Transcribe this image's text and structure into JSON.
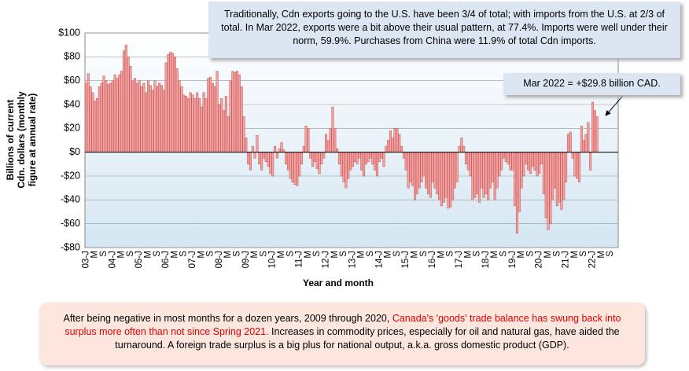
{
  "chart_data": {
    "type": "bar",
    "annotation": "Traditionally, Cdn exports going to the U.S. have been 3/4 of total; with imports from the U.S. at 2/3 of total. In Mar 2022, exports were a bit above their usual pattern, at 77.4%. Imports were well under their norm, 59.9%. Purchases from China were 11.9% of total Cdn imports.",
    "callout": "Mar 2022 = +$29.8 billion CAD.",
    "ylabel": [
      "Billions of current",
      "Cdn. dollars (monthly",
      "figure at annual rate)"
    ],
    "xlabel": "Year and month",
    "note": [
      "After being negative in most months for a dozen years, 2009 through 2020, ",
      "Canada's 'goods' trade balance has swung back into surplus more often than not since Spring 2021.",
      " Increases in commodity prices, especially for oil and natural gas, have aided the turnaround. A foreign trade surplus is a big plus for national output, a.k.a. gross domestic product (GDP)."
    ],
    "color": "#f4a3a3",
    "edgecolor": "#c0504d",
    "ylim": [
      -80,
      100
    ],
    "yticks": [
      {
        "value": -80,
        "label": "-$80"
      },
      {
        "value": -60,
        "label": "-$60"
      },
      {
        "value": -40,
        "label": "-$40"
      },
      {
        "value": -20,
        "label": "-$20"
      },
      {
        "value": 0,
        "label": "$0"
      },
      {
        "value": 20,
        "label": "$20"
      },
      {
        "value": 40,
        "label": "$40"
      },
      {
        "value": 60,
        "label": "$60"
      },
      {
        "value": 80,
        "label": "$80"
      },
      {
        "value": 100,
        "label": "$100"
      }
    ],
    "grid": true,
    "categories": [
      "03-J",
      null,
      null,
      null,
      "M",
      null,
      null,
      null,
      "S",
      null,
      null,
      null,
      "04-J",
      null,
      null,
      null,
      "M",
      null,
      null,
      null,
      "S",
      null,
      null,
      null,
      "05-J",
      null,
      null,
      null,
      "M",
      null,
      null,
      null,
      "S",
      null,
      null,
      null,
      "06-J",
      null,
      null,
      null,
      "M",
      null,
      null,
      null,
      "S",
      null,
      null,
      null,
      "07-J",
      null,
      null,
      null,
      "M",
      null,
      null,
      null,
      "S",
      null,
      null,
      null,
      "08-J",
      null,
      null,
      null,
      "M",
      null,
      null,
      null,
      "S",
      null,
      null,
      null,
      "09-J",
      null,
      null,
      null,
      "M",
      null,
      null,
      null,
      "S",
      null,
      null,
      null,
      "10-J",
      null,
      null,
      null,
      "M",
      null,
      null,
      null,
      "S",
      null,
      null,
      null,
      "11-J",
      null,
      null,
      null,
      "M",
      null,
      null,
      null,
      "S",
      null,
      null,
      null,
      "12-J",
      null,
      null,
      null,
      "M",
      null,
      null,
      null,
      "S",
      null,
      null,
      null,
      "13-J",
      null,
      null,
      null,
      "M",
      null,
      null,
      null,
      "S",
      null,
      null,
      null,
      "14-J",
      null,
      null,
      null,
      "M",
      null,
      null,
      null,
      "S",
      null,
      null,
      null,
      "15-J",
      null,
      null,
      null,
      "M",
      null,
      null,
      null,
      "S",
      null,
      null,
      null,
      "16-J",
      null,
      null,
      null,
      "M",
      null,
      null,
      null,
      "S",
      null,
      null,
      null,
      "17-J",
      null,
      null,
      null,
      "M",
      null,
      null,
      null,
      "S",
      null,
      null,
      null,
      "18-J",
      null,
      null,
      null,
      "M",
      null,
      null,
      null,
      "S",
      null,
      null,
      null,
      "19-J",
      null,
      null,
      null,
      "M",
      null,
      null,
      null,
      "S",
      null,
      null,
      null,
      "20-J",
      null,
      null,
      null,
      "M",
      null,
      null,
      null,
      "S",
      null,
      null,
      null,
      "21-J",
      null,
      null,
      null,
      "M",
      null,
      null,
      null,
      "S",
      null,
      null,
      null,
      "22-J",
      null,
      null,
      null,
      "M",
      null,
      null,
      null,
      "S",
      null,
      null,
      null
    ],
    "values": [
      58,
      66,
      55,
      50,
      43,
      45,
      55,
      58,
      64,
      60,
      57,
      58,
      60,
      65,
      62,
      65,
      68,
      85,
      90,
      80,
      72,
      60,
      62,
      58,
      60,
      55,
      58,
      50,
      60,
      56,
      52,
      60,
      55,
      58,
      56,
      52,
      75,
      82,
      84,
      83,
      80,
      70,
      60,
      55,
      48,
      47,
      45,
      50,
      48,
      45,
      50,
      45,
      38,
      50,
      45,
      62,
      63,
      58,
      55,
      68,
      40,
      45,
      35,
      47,
      30,
      60,
      68,
      67,
      68,
      65,
      55,
      30,
      12,
      -10,
      -15,
      5,
      -5,
      14,
      -10,
      -15,
      -5,
      -8,
      -12,
      -18,
      -20,
      5,
      -5,
      3,
      8,
      2,
      -10,
      -15,
      -22,
      -25,
      -27,
      -28,
      -20,
      -10,
      5,
      22,
      20,
      -5,
      -12,
      -8,
      -14,
      -18,
      -10,
      -5,
      15,
      10,
      20,
      38,
      20,
      3,
      -10,
      -20,
      -25,
      -30,
      -22,
      -15,
      -12,
      -8,
      -10,
      -5,
      -15,
      -20,
      -10,
      -8,
      -5,
      -10,
      -15,
      -20,
      -8,
      -5,
      -12,
      5,
      10,
      18,
      12,
      20,
      20,
      15,
      5,
      -5,
      -15,
      -30,
      -25,
      -28,
      -40,
      -35,
      -30,
      -25,
      -20,
      -30,
      -35,
      -38,
      -25,
      -30,
      -35,
      -40,
      -45,
      -42,
      -38,
      -47,
      -46,
      -40,
      -30,
      -25,
      5,
      12,
      5,
      -10,
      -15,
      -20,
      -40,
      -38,
      -35,
      -42,
      -30,
      -38,
      -35,
      -40,
      -30,
      -25,
      -40,
      -30,
      -20,
      -15,
      -5,
      -8,
      -10,
      -15,
      -15,
      -45,
      -68,
      -50,
      -30,
      -20,
      -10,
      -15,
      -18,
      -12,
      -15,
      -20,
      -18,
      -10,
      -35,
      -55,
      -65,
      -60,
      -40,
      -30,
      -45,
      -42,
      -48,
      -40,
      -25,
      15,
      17,
      -5,
      -20,
      -22,
      -25,
      22,
      10,
      15,
      25,
      -15,
      42,
      35,
      29.8,
      null,
      null,
      null,
      null,
      null,
      null,
      null,
      null,
      null
    ]
  }
}
